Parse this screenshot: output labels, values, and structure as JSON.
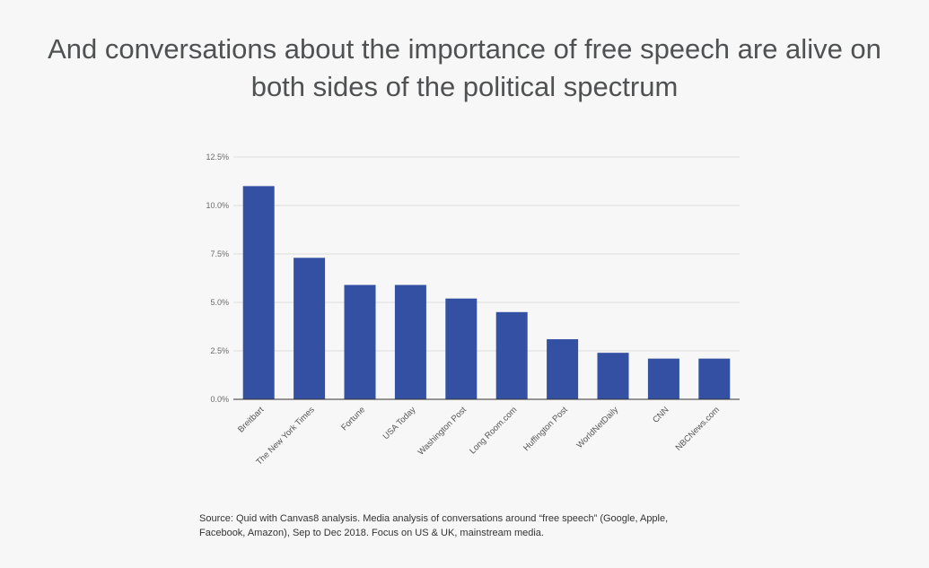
{
  "title": {
    "line1": "And conversations about the importance of free speech are alive on",
    "line2": "both sides of the political spectrum"
  },
  "source": {
    "line1": "Source: Quid with Canvas8 analysis. Media analysis of conversations around “free speech” (Google, Apple,",
    "line2": "Facebook, Amazon), Sep to Dec 2018. Focus on US & UK, mainstream media."
  },
  "colors": {
    "bar": "#3450a3",
    "grid": "#dddddd",
    "axis": "#333333"
  },
  "chart_data": {
    "type": "bar",
    "categories": [
      "Breitbart",
      "The New York Times",
      "Fortune",
      "USA Today",
      "Washington Post",
      "Long Room.com",
      "Huffington Post",
      "WorldNetDaily",
      "CNN",
      "NBCNews.com"
    ],
    "values": [
      11.0,
      7.3,
      5.9,
      5.9,
      5.2,
      4.5,
      3.1,
      2.4,
      2.1,
      2.1
    ],
    "yticks": [
      "0.0%",
      "2.5%",
      "5.0%",
      "7.5%",
      "10.0%",
      "12.5%"
    ],
    "ylim": [
      0,
      12.5
    ],
    "grid": true,
    "legend": "none"
  }
}
